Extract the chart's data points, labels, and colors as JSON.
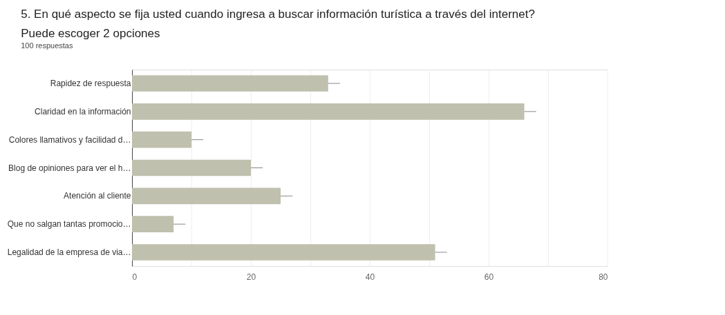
{
  "chart_data": {
    "type": "bar",
    "orientation": "horizontal",
    "title": [
      "5. En qué aspecto se fija usted cuando ingresa a buscar información turística a través del internet?",
      " Puede escoger 2 opciones"
    ],
    "subtitle": "100 respuestas",
    "categories": [
      "Rapidez de respuesta",
      "Claridad en la información",
      "Colores llamativos y facilidad d…",
      "Blog de opiniones para ver el h…",
      "Atención al cliente",
      "Que no salgan tantas promocio…",
      "Legalidad de la empresa de via…"
    ],
    "values": [
      33,
      66,
      10,
      20,
      25,
      7,
      51
    ],
    "errors": [
      [
        33,
        35
      ],
      [
        66,
        68
      ],
      [
        10,
        12
      ],
      [
        20,
        22
      ],
      [
        25,
        27
      ],
      [
        7,
        9
      ],
      [
        51,
        53
      ]
    ],
    "color": "#bfc0ae",
    "xlim": [
      0,
      80
    ],
    "xticks": [
      0,
      {
        "value": 10,
        "label": null
      },
      20,
      {
        "value": 30,
        "label": null
      },
      40,
      {
        "value": 50,
        "label": null
      },
      60,
      {
        "value": 70,
        "label": null
      },
      80
    ],
    "grid": "x"
  }
}
